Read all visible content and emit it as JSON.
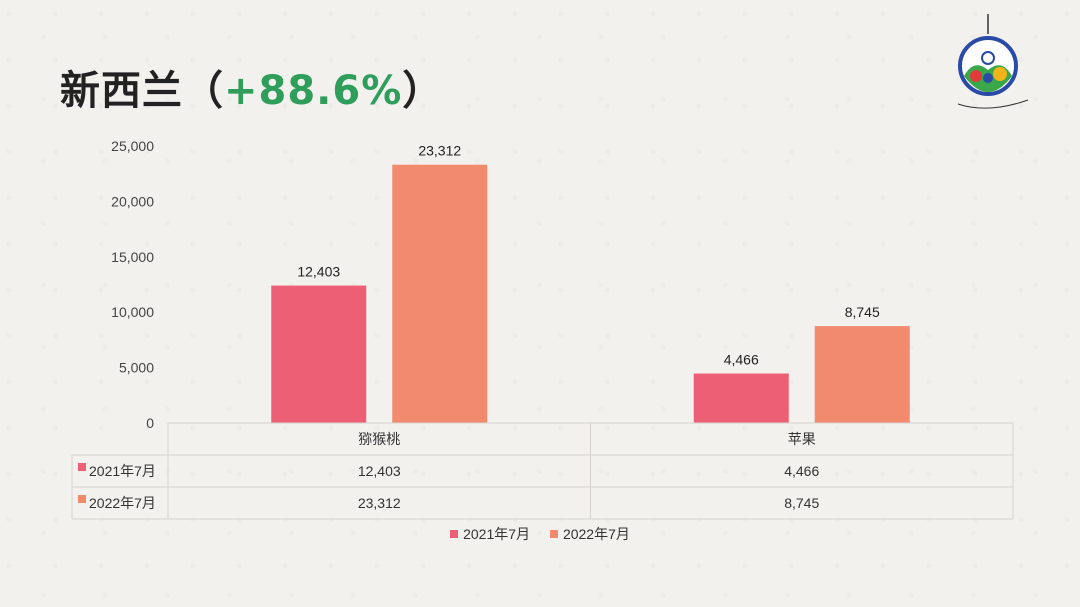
{
  "title": {
    "main": "新西兰（",
    "pct": "+88.6%",
    "close": "）"
  },
  "colors": {
    "s2021": "#ec5f75",
    "s2022": "#f28b6e"
  },
  "chart_data": {
    "type": "bar",
    "categories": [
      "猕猴桃",
      "苹果"
    ],
    "series": [
      {
        "name": "2021年7月",
        "values": [
          12403,
          4466
        ]
      },
      {
        "name": "2022年7月",
        "values": [
          23312,
          8745
        ]
      }
    ],
    "value_labels": [
      [
        "12,403",
        "4,466"
      ],
      [
        "23,312",
        "8,745"
      ]
    ],
    "yticks": [
      "0",
      "5,000",
      "10,000",
      "15,000",
      "20,000",
      "25,000"
    ],
    "ylim": [
      0,
      25000
    ],
    "data_table": true,
    "legend_position": "bottom"
  }
}
